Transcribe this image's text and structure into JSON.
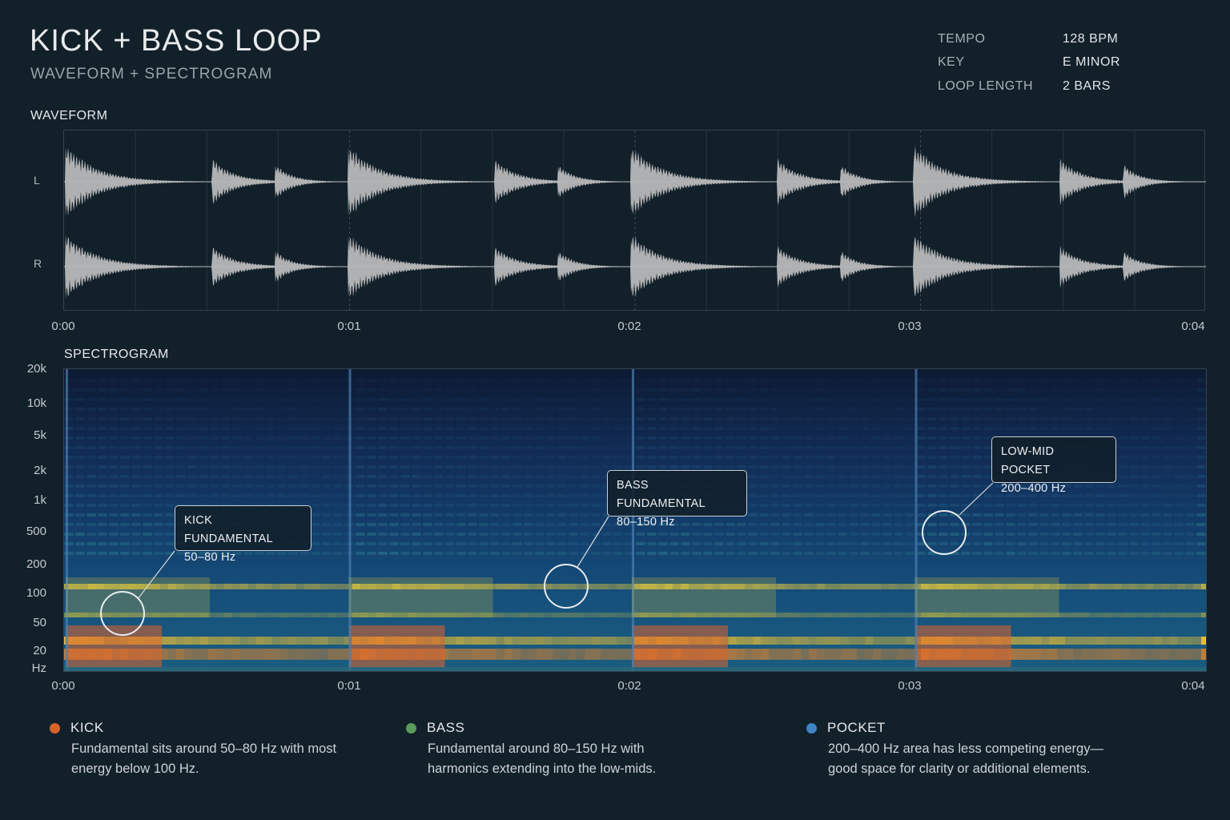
{
  "header": {
    "title": "KICK + BASS LOOP",
    "subtitle": "WAVEFORM + SPECTROGRAM"
  },
  "meta": [
    {
      "key": "TEMPO",
      "value": "128 BPM"
    },
    {
      "key": "KEY",
      "value": "E MINOR"
    },
    {
      "key": "LOOP LENGTH",
      "value": "2 BARS"
    }
  ],
  "waveform": {
    "label": "WAVEFORM",
    "channels": [
      "L",
      "R"
    ],
    "color": "#b8b8b8"
  },
  "time_ticks": [
    "0:00",
    "0:01",
    "0:02",
    "0:03",
    "0:04"
  ],
  "spectrogram": {
    "label": "SPECTROGRAM",
    "freq_ticks": [
      "20k",
      "10k",
      "5k",
      "2k",
      "1k",
      "500",
      "200",
      "100",
      "50",
      "20",
      "Hz"
    ]
  },
  "callouts": [
    {
      "title": "KICK FUNDAMENTAL",
      "range": "50–80 Hz"
    },
    {
      "title": "BASS FUNDAMENTAL",
      "range": "80–150 Hz"
    },
    {
      "title": "LOW-MID POCKET",
      "range": "200–400 Hz"
    }
  ],
  "legend": [
    {
      "name": "KICK",
      "color": "#d9622b",
      "desc": "Fundamental sits around 50–80 Hz with most energy below 100 Hz."
    },
    {
      "name": "BASS",
      "color": "#5a9a5a",
      "desc": "Fundamental around 80–150 Hz with harmonics extending into the low-mids."
    },
    {
      "name": "POCKET",
      "color": "#3f84c4",
      "desc": "200–400 Hz area has less competing energy—good space for clarity or additional elements."
    }
  ]
}
